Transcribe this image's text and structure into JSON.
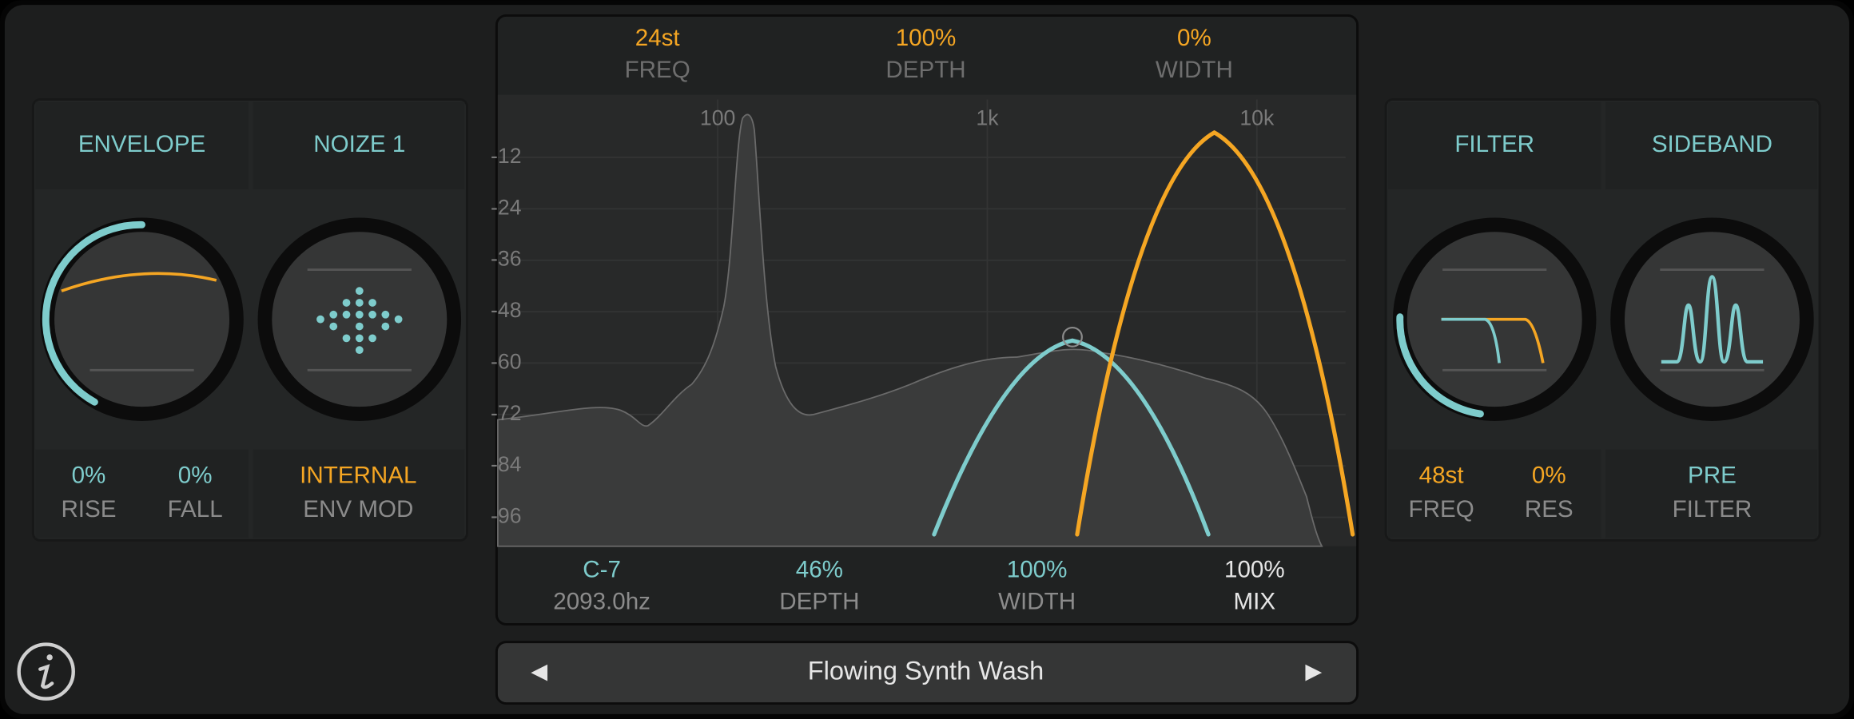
{
  "left_panel": {
    "tabs": [
      "ENVELOPE",
      "NOIZE 1"
    ],
    "params": [
      {
        "value": "0%",
        "label": "RISE"
      },
      {
        "value": "0%",
        "label": "FALL"
      },
      {
        "value": "INTERNAL",
        "label": "ENV MOD"
      }
    ]
  },
  "center": {
    "top_params": [
      {
        "value": "24st",
        "label": "FREQ"
      },
      {
        "value": "100%",
        "label": "DEPTH"
      },
      {
        "value": "0%",
        "label": "WIDTH"
      }
    ],
    "freq_axis": [
      "100",
      "1k",
      "10k"
    ],
    "db_axis": [
      "-12",
      "-24",
      "-36",
      "-48",
      "-60",
      "-72",
      "-84",
      "-96"
    ],
    "bottom_params": [
      {
        "value": "C-7",
        "label": "2093.0hz"
      },
      {
        "value": "46%",
        "label": "DEPTH"
      },
      {
        "value": "100%",
        "label": "WIDTH"
      },
      {
        "value": "100%",
        "label": "MIX"
      }
    ]
  },
  "preset": {
    "name": "Flowing Synth Wash"
  },
  "right_panel": {
    "tabs": [
      "FILTER",
      "SIDEBAND"
    ],
    "params": [
      {
        "value": "48st",
        "label": "FREQ"
      },
      {
        "value": "0%",
        "label": "RES"
      },
      {
        "value": "PRE",
        "label": "FILTER"
      }
    ]
  }
}
